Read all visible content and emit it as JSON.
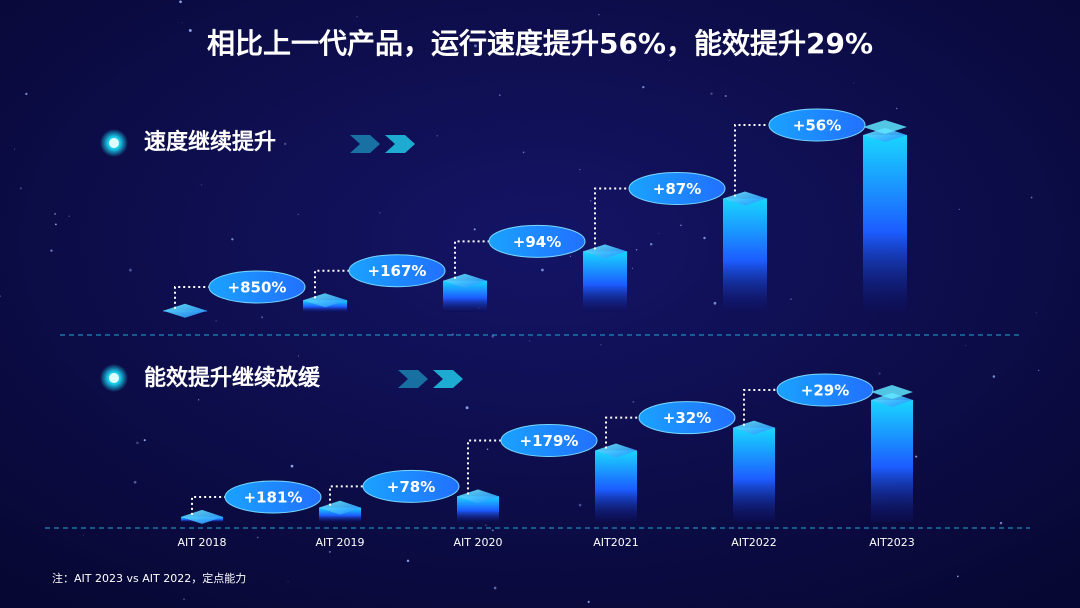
{
  "title": "相比上一代产品，运行速度提升56%，能效提升29%",
  "chart_data": [
    {
      "type": "bar",
      "title": "速度继续提升",
      "values": [
        1,
        9.5,
        25.4,
        49.3,
        92.2,
        143.8
      ],
      "annotations": [
        "+850%",
        "+167%",
        "+94%",
        "+87%",
        "+56%"
      ]
    },
    {
      "type": "bar",
      "title": "能效提升继续放缓",
      "categories": [
        "AIT 2018",
        "AIT 2019",
        "AIT 2020",
        "AIT2021",
        "AIT2022",
        "AIT2023"
      ],
      "values": [
        1,
        2.81,
        5.0,
        13.95,
        18.4,
        23.8
      ],
      "annotations": [
        "+181%",
        "+78%",
        "+179%",
        "+32%",
        "+29%"
      ]
    }
  ],
  "footnote": "注：AIT 2023 vs AIT 2022，定点能力"
}
